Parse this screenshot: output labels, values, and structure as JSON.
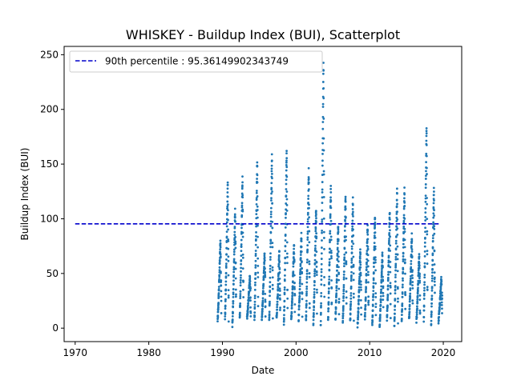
{
  "chart_data": {
    "type": "scatter",
    "title": "WHISKEY - Buildup Index (BUI), Scatterplot",
    "xlabel": "Date",
    "ylabel": "Buildup Index (BUI)",
    "x_axis_kind": "year",
    "xlim": [
      1968.5,
      2022.5
    ],
    "ylim": [
      -12.3,
      257.6
    ],
    "xticks": [
      1970,
      1980,
      1990,
      2000,
      2010,
      2020
    ],
    "yticks": [
      0,
      50,
      100,
      150,
      200,
      250
    ],
    "grid": false,
    "legend_position": "upper-left",
    "legend": [
      {
        "label": "90th percentile : 95.36149902343749",
        "style": "dashed-line",
        "color": "#0000cc"
      }
    ],
    "reference_line": {
      "value": 95.36149902343749,
      "x_start": 1970,
      "x_end": 2019.5,
      "color": "#0000cc",
      "style": "dashed"
    },
    "scatter_color": "#1f77b4",
    "season_peaks": [
      {
        "year": 1989,
        "max": 80
      },
      {
        "year": 1990,
        "max": 134
      },
      {
        "year": 1991,
        "max": 108
      },
      {
        "year": 1992,
        "max": 137
      },
      {
        "year": 1993,
        "max": 48
      },
      {
        "year": 1994,
        "max": 155
      },
      {
        "year": 1995,
        "max": 68
      },
      {
        "year": 1996,
        "max": 158
      },
      {
        "year": 1997,
        "max": 70
      },
      {
        "year": 1998,
        "max": 165
      },
      {
        "year": 1999,
        "max": 76
      },
      {
        "year": 2000,
        "max": 86
      },
      {
        "year": 2001,
        "max": 145
      },
      {
        "year": 2002,
        "max": 110
      },
      {
        "year": 2003,
        "max": 246
      },
      {
        "year": 2004,
        "max": 129
      },
      {
        "year": 2005,
        "max": 95
      },
      {
        "year": 2006,
        "max": 122
      },
      {
        "year": 2007,
        "max": 118
      },
      {
        "year": 2008,
        "max": 70
      },
      {
        "year": 2009,
        "max": 95
      },
      {
        "year": 2010,
        "max": 103
      },
      {
        "year": 2011,
        "max": 68
      },
      {
        "year": 2012,
        "max": 107
      },
      {
        "year": 2013,
        "max": 127
      },
      {
        "year": 2014,
        "max": 128
      },
      {
        "year": 2015,
        "max": 86
      },
      {
        "year": 2016,
        "max": 68
      },
      {
        "year": 2017,
        "max": 186
      },
      {
        "year": 2018,
        "max": 128
      },
      {
        "year": 2019,
        "max": 45
      }
    ]
  }
}
